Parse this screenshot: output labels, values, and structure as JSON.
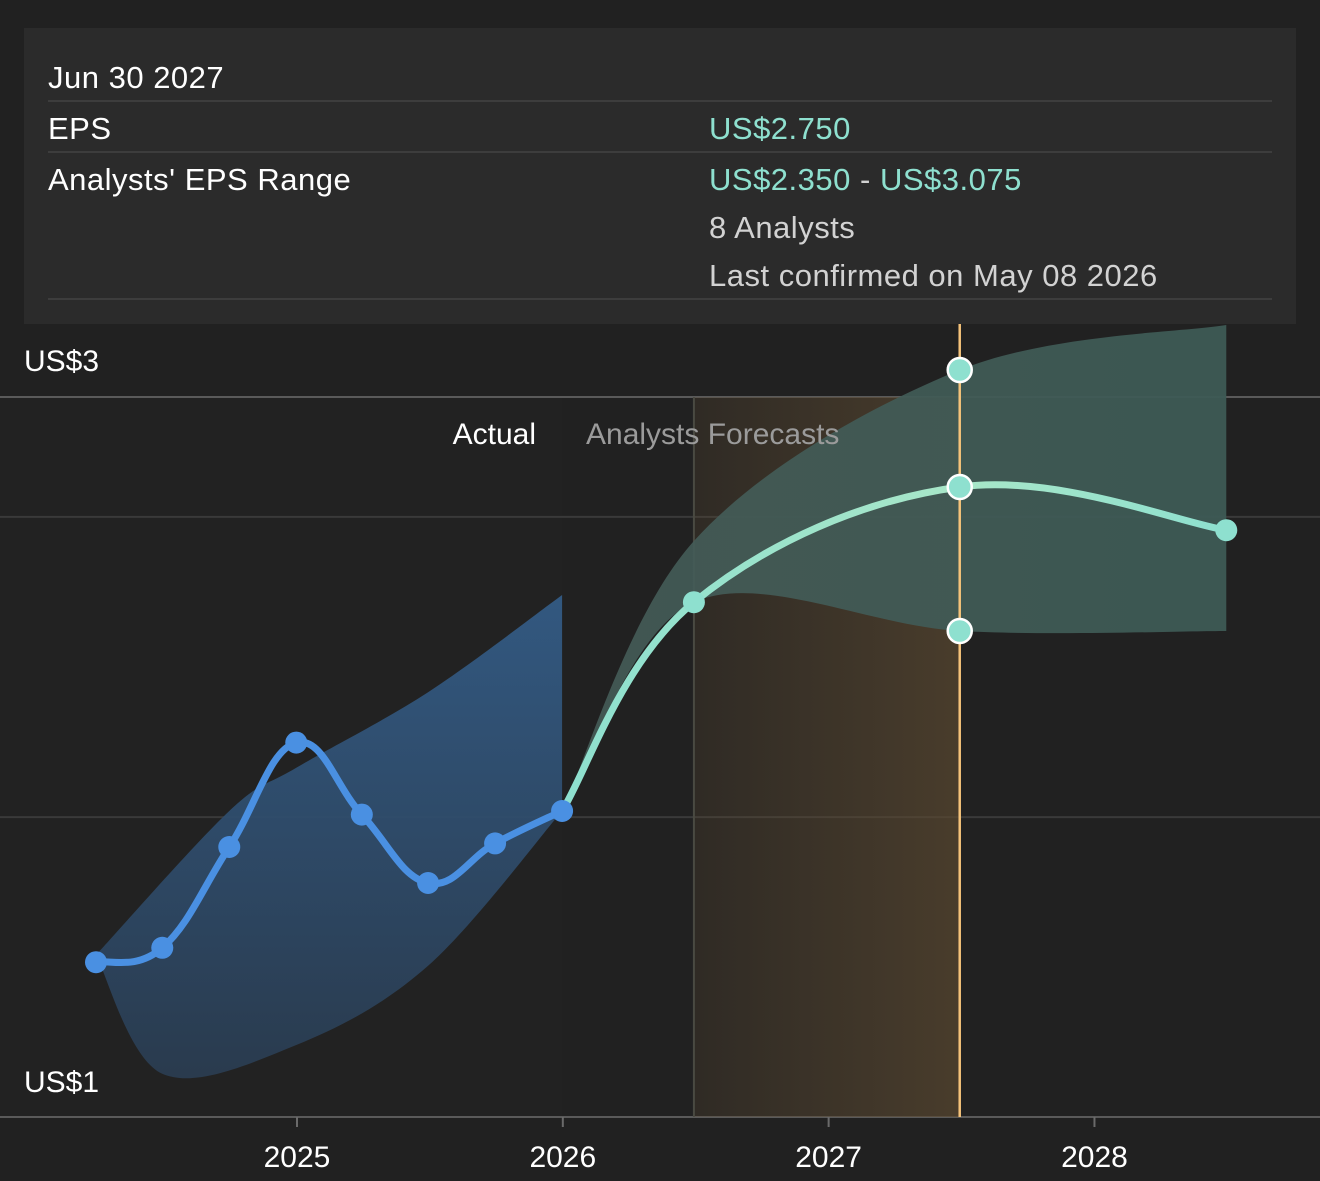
{
  "tooltip": {
    "date": "Jun 30 2027",
    "eps_label": "EPS",
    "eps_value": "US$2.750",
    "range_label": "Analysts' EPS Range",
    "range_low": "US$2.350",
    "range_sep": " - ",
    "range_high": "US$3.075",
    "analysts": "8 Analysts",
    "confirmed": "Last confirmed on May 08 2026"
  },
  "colors": {
    "background": "#212121",
    "tooltip_bg": "#2b2b2b",
    "actual_line": "#4a90e2",
    "actual_band": "#335b85",
    "forecast_line": "#8ee0cf",
    "forecast_band": "#3f5a55",
    "highlight_band": "#5a4830",
    "cursor_line": "#f5c37a",
    "grid": "#4a4a4a"
  },
  "chart_data": {
    "type": "line",
    "y_tick_labels": [
      "US$3",
      "US$1"
    ],
    "ylim": [
      1,
      3
    ],
    "x_tick_labels": [
      "2025",
      "2026",
      "2027",
      "2028"
    ],
    "section_labels": {
      "actual": "Actual",
      "forecast": "Analysts Forecasts"
    },
    "grid": true,
    "actual": {
      "name": "",
      "points": [
        {
          "x": "2024-03-31",
          "y": 1.43
        },
        {
          "x": "2024-06-30",
          "y": 1.47
        },
        {
          "x": "2024-09-30",
          "y": 1.75
        },
        {
          "x": "2024-12-31",
          "y": 2.04
        },
        {
          "x": "2025-03-31",
          "y": 1.84
        },
        {
          "x": "2025-06-30",
          "y": 1.65
        },
        {
          "x": "2025-09-30",
          "y": 1.76
        },
        {
          "x": "2025-12-31",
          "y": 1.85
        }
      ],
      "band_high": [
        {
          "x": "2024-03-31",
          "y": 1.45
        },
        {
          "x": "2024-09-30",
          "y": 1.85
        },
        {
          "x": "2024-12-31",
          "y": 1.97
        },
        {
          "x": "2025-06-30",
          "y": 2.18
        },
        {
          "x": "2025-12-31",
          "y": 2.45
        }
      ],
      "band_low": [
        {
          "x": "2025-12-31",
          "y": 1.85
        },
        {
          "x": "2025-06-30",
          "y": 1.42
        },
        {
          "x": "2024-12-31",
          "y": 1.2
        },
        {
          "x": "2024-06-30",
          "y": 1.12
        },
        {
          "x": "2024-03-31",
          "y": 1.45
        }
      ]
    },
    "forecast": {
      "name": "",
      "points": [
        {
          "x": "2025-12-31",
          "y": 1.85
        },
        {
          "x": "2026-06-30",
          "y": 2.43
        },
        {
          "x": "2027-06-30",
          "y": 2.75
        },
        {
          "x": "2028-06-30",
          "y": 2.63
        }
      ],
      "band_high": [
        {
          "x": "2025-12-31",
          "y": 1.85
        },
        {
          "x": "2026-06-30",
          "y": 2.6
        },
        {
          "x": "2027-06-30",
          "y": 3.075
        },
        {
          "x": "2028-06-30",
          "y": 3.2
        }
      ],
      "band_low": [
        {
          "x": "2028-06-30",
          "y": 2.35
        },
        {
          "x": "2027-06-30",
          "y": 2.35
        },
        {
          "x": "2026-06-30",
          "y": 2.43
        },
        {
          "x": "2025-12-31",
          "y": 1.85
        }
      ],
      "range_markers": [
        {
          "x": "2027-06-30",
          "y": 3.075
        },
        {
          "x": "2027-06-30",
          "y": 2.35
        }
      ]
    },
    "highlight_range": {
      "from": "2026-06-30",
      "to": "2027-06-30"
    },
    "cursor_x": "2027-06-30"
  }
}
